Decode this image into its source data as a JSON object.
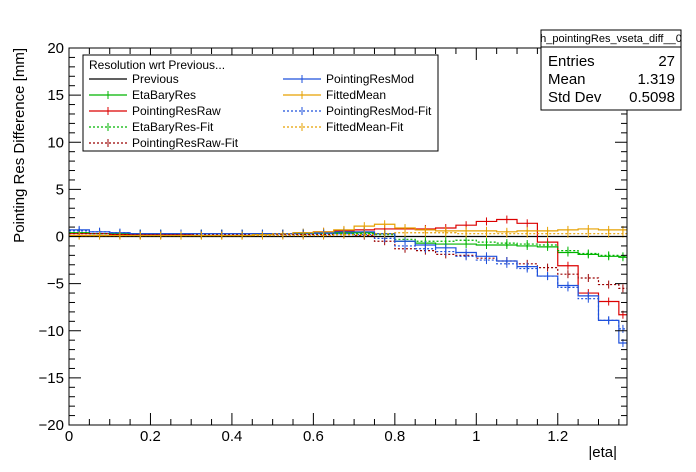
{
  "chart_data": {
    "type": "line",
    "plot_style": "step histogram",
    "xlabel": "|eta|",
    "ylabel": "Pointing Res Difference [mm]",
    "xlim": [
      0,
      1.37
    ],
    "ylim": [
      -20,
      20
    ],
    "x_ticks": [
      "0",
      "0.2",
      "0.4",
      "0.6",
      "0.8",
      "1",
      "1.2"
    ],
    "y_ticks": [
      "20",
      "15",
      "10",
      "5",
      "0",
      "−5",
      "−10",
      "−15",
      "−20"
    ],
    "bin_edges": [
      0,
      0.05,
      0.1,
      0.15,
      0.2,
      0.25,
      0.3,
      0.35,
      0.4,
      0.45,
      0.5,
      0.55,
      0.6,
      0.65,
      0.7,
      0.75,
      0.8,
      0.85,
      0.9,
      0.95,
      1.0,
      1.05,
      1.1,
      1.15,
      1.2,
      1.25,
      1.3,
      1.35,
      1.37
    ],
    "legend": {
      "title": "Resolution wrt Previous...",
      "position": "top-left"
    },
    "series": [
      {
        "name": "Previous",
        "color": "#000000",
        "style": "solid",
        "errors": false,
        "values": [
          0,
          0,
          0,
          0,
          0,
          0,
          0,
          0,
          0,
          0,
          0,
          0,
          0,
          0,
          0,
          0,
          0,
          0,
          0,
          0,
          0,
          0,
          0,
          0,
          0,
          0,
          0,
          0
        ]
      },
      {
        "name": "EtaBaryRes",
        "color": "#00b400",
        "style": "solid",
        "errors": true,
        "values": [
          0.4,
          0.3,
          0.3,
          0.3,
          0.3,
          0.3,
          0.3,
          0.3,
          0.3,
          0.3,
          0.3,
          0.3,
          0.4,
          0.4,
          0.4,
          0.3,
          -0.5,
          -0.7,
          -0.8,
          -0.8,
          -0.9,
          -0.9,
          -1.0,
          -1.1,
          -1.7,
          -1.9,
          -2.1,
          -2.2
        ]
      },
      {
        "name": "PointingResRaw",
        "color": "#dc0000",
        "style": "solid",
        "errors": true,
        "values": [
          0.3,
          0.3,
          0.2,
          0.2,
          0.2,
          0.2,
          0.3,
          0.3,
          0.3,
          0.3,
          0.3,
          0.3,
          0.5,
          0.6,
          0.7,
          0.8,
          0.8,
          0.8,
          0.9,
          1.2,
          1.6,
          1.8,
          1.4,
          -0.6,
          -3.1,
          -6.0,
          -6.9,
          -8.3
        ]
      },
      {
        "name": "EtaBaryRes-Fit",
        "color": "#00b400",
        "style": "dotted",
        "errors": true,
        "values": [
          0.4,
          0.3,
          0.3,
          0.3,
          0.3,
          0.3,
          0.3,
          0.3,
          0.3,
          0.3,
          0.3,
          0.3,
          0.3,
          0.3,
          0.3,
          0.2,
          -0.3,
          -0.5,
          -0.5,
          -0.4,
          -0.6,
          -0.7,
          -0.8,
          -0.9,
          -1.5,
          -1.8,
          -2.0,
          -2.1
        ]
      },
      {
        "name": "PointingResRaw-Fit",
        "color": "#9b0000",
        "style": "dotted",
        "errors": true,
        "values": [
          0.3,
          0.3,
          0.2,
          0.2,
          0.2,
          0.2,
          0.2,
          0.2,
          0.2,
          0.2,
          0.2,
          0.2,
          0.2,
          0.2,
          0.1,
          -0.5,
          -1.3,
          -1.5,
          -1.9,
          -2.0,
          -2.3,
          -2.6,
          -2.9,
          -3.3,
          -4.0,
          -4.4,
          -5.1,
          -5.5
        ]
      },
      {
        "name": "PointingResMod",
        "color": "#1e50dc",
        "style": "solid",
        "errors": true,
        "values": [
          0.7,
          0.5,
          0.4,
          0.3,
          0.3,
          0.3,
          0.3,
          0.3,
          0.3,
          0.3,
          0.3,
          0.4,
          0.4,
          0.5,
          0.5,
          0.3,
          -0.5,
          -0.9,
          -1.2,
          -1.7,
          -2.1,
          -2.6,
          -3.2,
          -4.2,
          -5.2,
          -6.3,
          -8.9,
          -11.3
        ]
      },
      {
        "name": "FittedMean",
        "color": "#e6a000",
        "style": "solid",
        "errors": true,
        "values": [
          0.1,
          0.1,
          0.1,
          0.1,
          0.1,
          0.1,
          0.1,
          0.1,
          0.1,
          0.2,
          0.3,
          0.4,
          0.5,
          0.7,
          1.1,
          1.3,
          0.9,
          0.7,
          0.6,
          0.6,
          0.6,
          0.5,
          0.6,
          0.6,
          0.7,
          0.8,
          0.7,
          0.7
        ]
      },
      {
        "name": "PointingResMod-Fit",
        "color": "#1e50dc",
        "style": "dotted",
        "errors": true,
        "values": [
          0.6,
          0.5,
          0.4,
          0.3,
          0.3,
          0.3,
          0.3,
          0.3,
          0.3,
          0.3,
          0.3,
          0.3,
          0.3,
          0.3,
          0.2,
          -0.2,
          -1.0,
          -1.3,
          -1.6,
          -2.1,
          -2.5,
          -2.9,
          -3.4,
          -4.2,
          -5.4,
          -6.6,
          -8.9,
          -9.8
        ]
      },
      {
        "name": "FittedMean-Fit",
        "color": "#e6a000",
        "style": "dotted",
        "errors": true,
        "values": [
          0.1,
          0.1,
          0.1,
          0.1,
          0.1,
          0.1,
          0.1,
          0.1,
          0.1,
          0.1,
          0.1,
          0.1,
          0.1,
          0.2,
          0.2,
          0.3,
          0.4,
          0.4,
          0.4,
          0.3,
          0.3,
          0.3,
          0.3,
          0.3,
          0.3,
          0.3,
          0.3,
          0.3
        ]
      }
    ]
  },
  "stats": {
    "name": "h_pointingRes_vseta_diff__0",
    "rows": [
      {
        "label": "Entries",
        "value": "27"
      },
      {
        "label": "Mean",
        "value": "1.319"
      },
      {
        "label": "Std Dev",
        "value": "0.5098"
      }
    ]
  }
}
